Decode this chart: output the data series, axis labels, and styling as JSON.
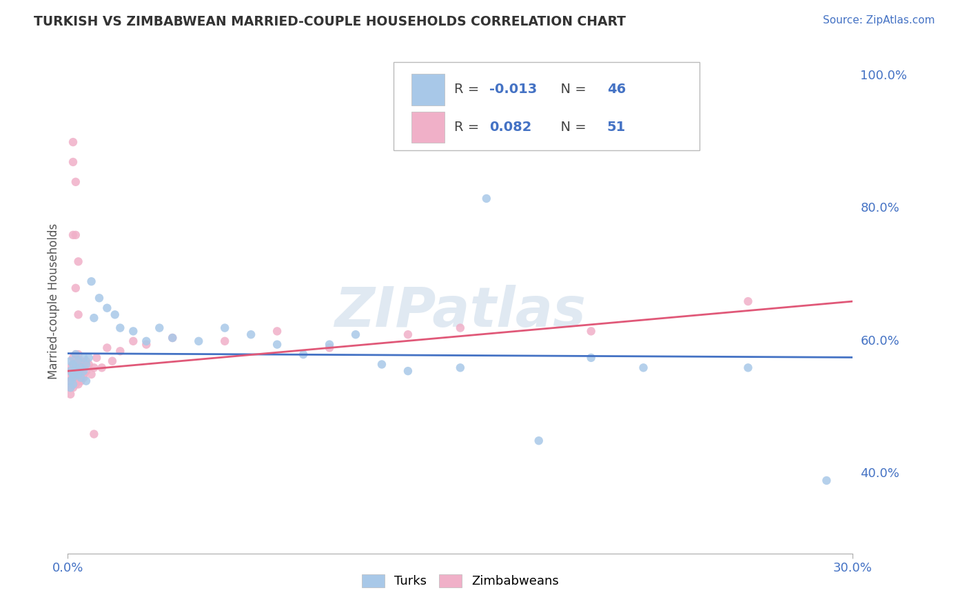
{
  "title": "TURKISH VS ZIMBABWEAN MARRIED-COUPLE HOUSEHOLDS CORRELATION CHART",
  "source": "Source: ZipAtlas.com",
  "ylabel": "Married-couple Households",
  "y_ticks_labels": [
    "40.0%",
    "60.0%",
    "80.0%",
    "100.0%"
  ],
  "y_tick_vals": [
    0.4,
    0.6,
    0.8,
    1.0
  ],
  "x_lim": [
    0.0,
    0.3
  ],
  "y_lim": [
    0.28,
    1.04
  ],
  "watermark": "ZIPatlas",
  "turks_color": "#a8c8e8",
  "zimbabweans_color": "#f0b0c8",
  "turks_line_color": "#4472c4",
  "zimbabweans_line_color": "#e05878",
  "turks_R": -0.013,
  "turks_N": 46,
  "zimbabweans_R": 0.082,
  "zimbabweans_N": 51,
  "legend_R1": "-0.013",
  "legend_N1": "46",
  "legend_R2": "0.082",
  "legend_N2": "51",
  "turks_x": [
    0.001,
    0.001,
    0.001,
    0.001,
    0.002,
    0.002,
    0.002,
    0.002,
    0.003,
    0.003,
    0.003,
    0.004,
    0.004,
    0.005,
    0.005,
    0.006,
    0.006,
    0.007,
    0.007,
    0.008,
    0.009,
    0.01,
    0.012,
    0.015,
    0.018,
    0.02,
    0.025,
    0.03,
    0.035,
    0.04,
    0.05,
    0.06,
    0.07,
    0.08,
    0.09,
    0.1,
    0.11,
    0.12,
    0.13,
    0.15,
    0.16,
    0.18,
    0.2,
    0.22,
    0.26,
    0.29
  ],
  "turks_y": [
    0.555,
    0.54,
    0.53,
    0.57,
    0.55,
    0.565,
    0.545,
    0.535,
    0.56,
    0.555,
    0.58,
    0.55,
    0.57,
    0.56,
    0.545,
    0.575,
    0.555,
    0.565,
    0.54,
    0.575,
    0.69,
    0.635,
    0.665,
    0.65,
    0.64,
    0.62,
    0.615,
    0.6,
    0.62,
    0.605,
    0.6,
    0.62,
    0.61,
    0.595,
    0.58,
    0.595,
    0.61,
    0.565,
    0.555,
    0.56,
    0.815,
    0.45,
    0.575,
    0.56,
    0.56,
    0.39
  ],
  "zimbabweans_x": [
    0.001,
    0.001,
    0.001,
    0.001,
    0.001,
    0.001,
    0.002,
    0.002,
    0.002,
    0.002,
    0.002,
    0.002,
    0.003,
    0.003,
    0.003,
    0.003,
    0.003,
    0.004,
    0.004,
    0.004,
    0.004,
    0.004,
    0.005,
    0.005,
    0.005,
    0.005,
    0.005,
    0.006,
    0.006,
    0.006,
    0.007,
    0.007,
    0.008,
    0.009,
    0.01,
    0.011,
    0.013,
    0.015,
    0.017,
    0.02,
    0.025,
    0.03,
    0.04,
    0.06,
    0.08,
    0.1,
    0.13,
    0.15,
    0.2,
    0.26,
    0.01
  ],
  "zimbabweans_y": [
    0.54,
    0.555,
    0.53,
    0.545,
    0.52,
    0.56,
    0.55,
    0.535,
    0.545,
    0.565,
    0.53,
    0.575,
    0.545,
    0.555,
    0.535,
    0.56,
    0.58,
    0.545,
    0.555,
    0.535,
    0.57,
    0.58,
    0.545,
    0.555,
    0.57,
    0.54,
    0.565,
    0.55,
    0.56,
    0.545,
    0.57,
    0.555,
    0.565,
    0.55,
    0.56,
    0.575,
    0.56,
    0.59,
    0.57,
    0.585,
    0.6,
    0.595,
    0.605,
    0.6,
    0.615,
    0.59,
    0.61,
    0.62,
    0.615,
    0.66,
    0.46
  ],
  "zimb_outliers_x": [
    0.002,
    0.003,
    0.004,
    0.002,
    0.003,
    0.004,
    0.003,
    0.002
  ],
  "zimb_outliers_y": [
    0.87,
    0.84,
    0.72,
    0.76,
    0.76,
    0.64,
    0.68,
    0.9
  ]
}
